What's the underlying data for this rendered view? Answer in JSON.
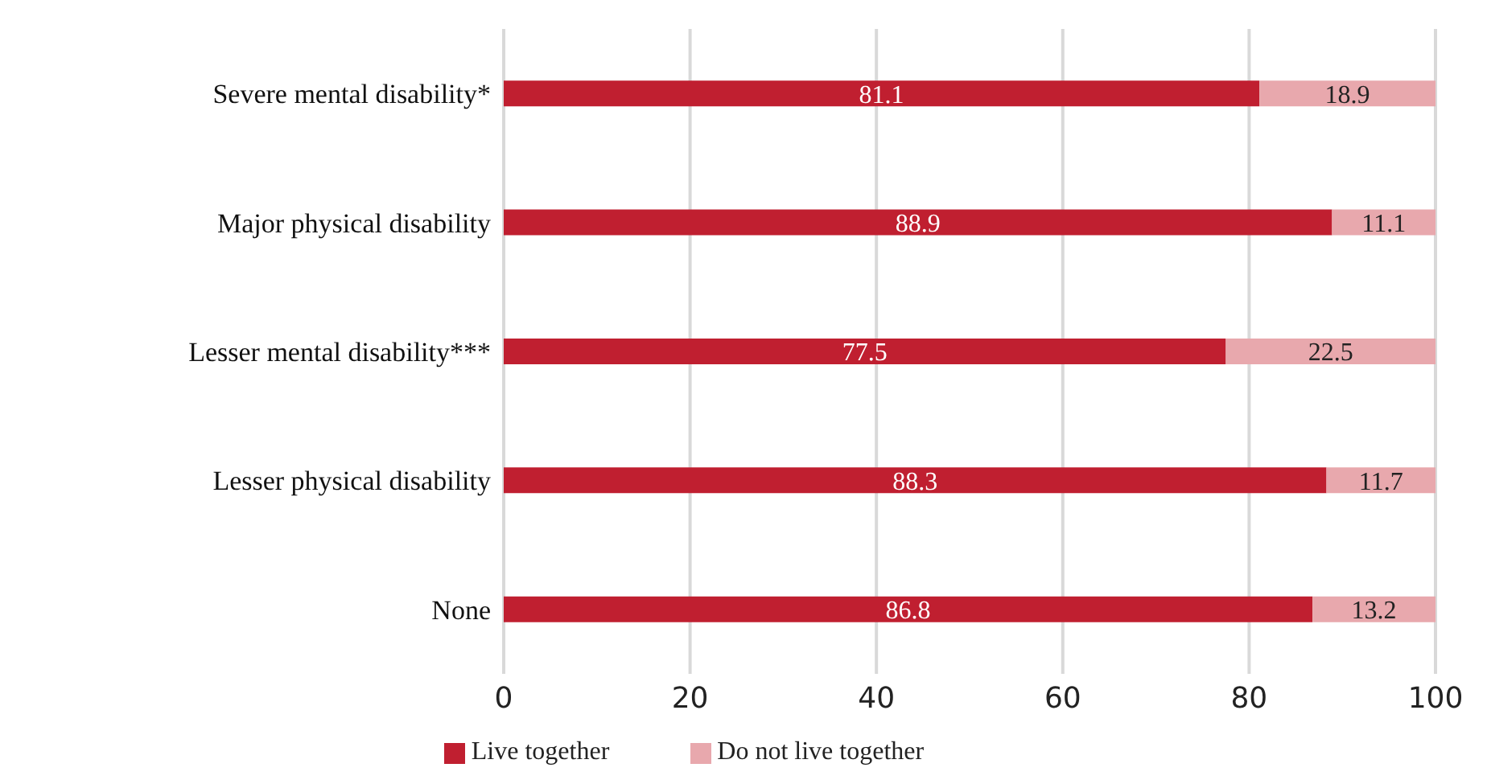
{
  "chart_data": {
    "type": "bar",
    "orientation": "horizontal",
    "stacked": true,
    "categories": [
      "Severe mental disability*",
      "Major physical disability",
      "Lesser mental disability***",
      "Lesser physical disability",
      "None"
    ],
    "series": [
      {
        "name": "Live together",
        "color": "#c01f30",
        "values": [
          81.1,
          88.9,
          77.5,
          88.3,
          86.8
        ]
      },
      {
        "name": "Do not live together",
        "color": "#e8a8ad",
        "values": [
          18.9,
          11.1,
          22.5,
          11.7,
          13.2
        ]
      }
    ],
    "xlim": [
      0,
      100
    ],
    "xticks": [
      0,
      20,
      40,
      60,
      80,
      100
    ],
    "grid": "x",
    "legend": "bottom",
    "data_labels": true
  }
}
